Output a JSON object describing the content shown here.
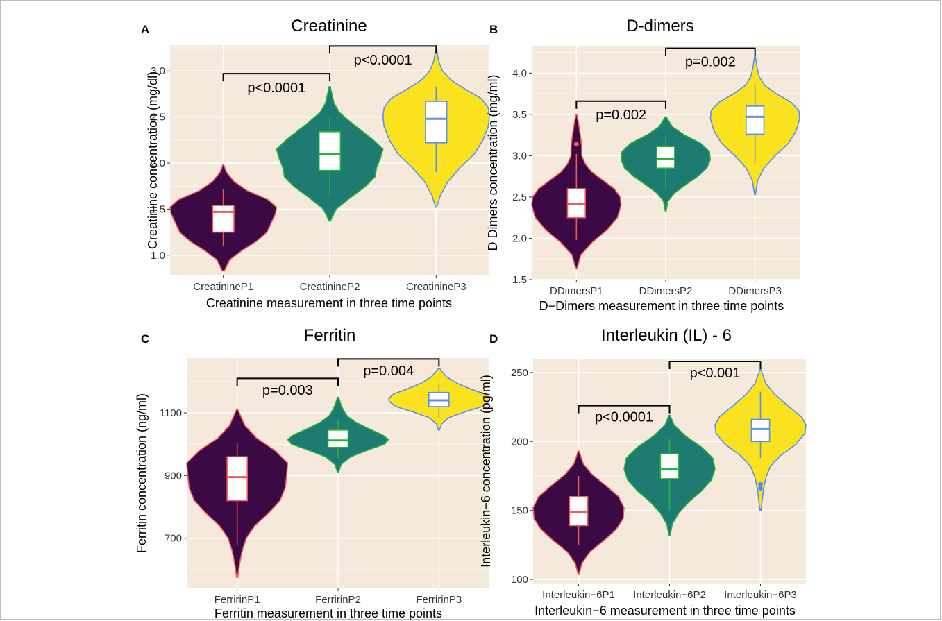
{
  "figure": {
    "colors": {
      "panel_background": "#f5e9dc",
      "gridline": "#ffffff",
      "violin_fill": [
        "#3b0a45",
        "#1e7b72",
        "#fbe21f"
      ],
      "accent": [
        "#f05a5b",
        "#2ab23a",
        "#5a8ff0"
      ],
      "bracket": "#000000"
    }
  },
  "chart_data": [
    {
      "panel": "A",
      "type": "violin",
      "title": "Creatinine",
      "xlabel": "Creatinine measurement in three time points",
      "ylabel": "Creatinine concentration (mg/dl)",
      "categories": [
        "CreatinineP1",
        "CreatinineP2",
        "CreatinineP3"
      ],
      "ylim": [
        0.78,
        3.28
      ],
      "yticks": [
        1.0,
        1.5,
        2.0,
        2.5,
        3.0
      ],
      "ytick_labels": [
        "1.0",
        "1.5",
        "2.0",
        "2.5",
        "3.0"
      ],
      "grid": true,
      "series": [
        {
          "category": "CreatinineP1",
          "min": 1.1,
          "q1": 1.25,
          "median": 1.47,
          "q3": 1.54,
          "max": 1.72,
          "violin_range": [
            0.83,
            1.98
          ],
          "outliers": [],
          "density": [
            [
              0.83,
              0.02
            ],
            [
              0.95,
              0.12
            ],
            [
              1.05,
              0.35
            ],
            [
              1.15,
              0.62
            ],
            [
              1.25,
              0.82
            ],
            [
              1.35,
              0.9
            ],
            [
              1.45,
              0.98
            ],
            [
              1.52,
              1.0
            ],
            [
              1.6,
              0.85
            ],
            [
              1.7,
              0.45
            ],
            [
              1.8,
              0.2
            ],
            [
              1.9,
              0.06
            ],
            [
              1.98,
              0.01
            ]
          ]
        },
        {
          "category": "CreatinineP2",
          "min": 1.64,
          "q1": 1.92,
          "median": 2.1,
          "q3": 2.34,
          "max": 2.5,
          "violin_range": [
            1.37,
            2.83
          ],
          "outliers": [],
          "density": [
            [
              1.37,
              0.01
            ],
            [
              1.5,
              0.12
            ],
            [
              1.62,
              0.38
            ],
            [
              1.75,
              0.68
            ],
            [
              1.85,
              0.85
            ],
            [
              1.95,
              0.88
            ],
            [
              2.05,
              0.95
            ],
            [
              2.15,
              1.0
            ],
            [
              2.25,
              0.82
            ],
            [
              2.35,
              0.6
            ],
            [
              2.45,
              0.38
            ],
            [
              2.55,
              0.18
            ],
            [
              2.65,
              0.08
            ],
            [
              2.75,
              0.04
            ],
            [
              2.83,
              0.01
            ]
          ]
        },
        {
          "category": "CreatinineP3",
          "min": 1.9,
          "q1": 2.22,
          "median": 2.48,
          "q3": 2.67,
          "max": 2.83,
          "violin_range": [
            1.52,
            3.22
          ],
          "outliers": [],
          "density": [
            [
              1.52,
              0.01
            ],
            [
              1.65,
              0.08
            ],
            [
              1.8,
              0.22
            ],
            [
              1.95,
              0.45
            ],
            [
              2.1,
              0.72
            ],
            [
              2.25,
              0.88
            ],
            [
              2.4,
              0.98
            ],
            [
              2.5,
              1.0
            ],
            [
              2.6,
              0.98
            ],
            [
              2.7,
              0.85
            ],
            [
              2.8,
              0.55
            ],
            [
              2.9,
              0.28
            ],
            [
              3.0,
              0.12
            ],
            [
              3.1,
              0.05
            ],
            [
              3.22,
              0.01
            ]
          ]
        }
      ],
      "comparisons": [
        {
          "groups": [
            0,
            1
          ],
          "label": "p<0.0001",
          "bracket_y": 2.97,
          "label_y": 2.82
        },
        {
          "groups": [
            1,
            2
          ],
          "label": "p<0.0001",
          "bracket_y": 3.27,
          "label_y": 3.12
        }
      ]
    },
    {
      "panel": "B",
      "type": "violin",
      "title": "D-dimers",
      "xlabel": "D−Dimers measurement in three time points",
      "ylabel": "D Dimers concentration (mg/ml)",
      "categories": [
        "DDimersP1",
        "DDimersP2",
        "DDimersP3"
      ],
      "ylim": [
        1.5,
        4.33
      ],
      "yticks": [
        1.5,
        2.0,
        2.5,
        3.0,
        3.5,
        4.0
      ],
      "ytick_labels": [
        "1.5",
        "2.0",
        "2.5",
        "3.0",
        "3.5",
        "4.0"
      ],
      "grid": true,
      "series": [
        {
          "category": "DDimersP1",
          "min": 1.98,
          "q1": 2.25,
          "median": 2.42,
          "q3": 2.6,
          "max": 3.02,
          "violin_range": [
            1.63,
            3.5
          ],
          "outliers": [
            3.14
          ],
          "density": [
            [
              1.63,
              0.01
            ],
            [
              1.8,
              0.1
            ],
            [
              1.95,
              0.35
            ],
            [
              2.1,
              0.68
            ],
            [
              2.25,
              0.92
            ],
            [
              2.4,
              1.0
            ],
            [
              2.5,
              0.98
            ],
            [
              2.6,
              0.85
            ],
            [
              2.7,
              0.6
            ],
            [
              2.8,
              0.35
            ],
            [
              2.9,
              0.2
            ],
            [
              3.0,
              0.12
            ],
            [
              3.1,
              0.12
            ],
            [
              3.2,
              0.1
            ],
            [
              3.35,
              0.06
            ],
            [
              3.5,
              0.01
            ]
          ]
        },
        {
          "category": "DDimersP2",
          "min": 2.6,
          "q1": 2.85,
          "median": 2.96,
          "q3": 3.11,
          "max": 3.23,
          "violin_range": [
            2.33,
            3.47
          ],
          "outliers": [],
          "density": [
            [
              2.33,
              0.01
            ],
            [
              2.45,
              0.05
            ],
            [
              2.55,
              0.2
            ],
            [
              2.65,
              0.45
            ],
            [
              2.75,
              0.72
            ],
            [
              2.85,
              0.92
            ],
            [
              2.95,
              1.0
            ],
            [
              3.05,
              0.98
            ],
            [
              3.15,
              0.78
            ],
            [
              3.25,
              0.42
            ],
            [
              3.35,
              0.15
            ],
            [
              3.47,
              0.01
            ]
          ]
        },
        {
          "category": "DDimersP3",
          "min": 2.9,
          "q1": 3.26,
          "median": 3.47,
          "q3": 3.6,
          "max": 3.86,
          "violin_range": [
            2.53,
            4.2
          ],
          "outliers": [],
          "density": [
            [
              2.53,
              0.01
            ],
            [
              2.7,
              0.06
            ],
            [
              2.85,
              0.2
            ],
            [
              3.0,
              0.45
            ],
            [
              3.15,
              0.75
            ],
            [
              3.3,
              0.92
            ],
            [
              3.45,
              1.0
            ],
            [
              3.55,
              0.98
            ],
            [
              3.65,
              0.8
            ],
            [
              3.75,
              0.48
            ],
            [
              3.85,
              0.22
            ],
            [
              3.95,
              0.1
            ],
            [
              4.05,
              0.05
            ],
            [
              4.2,
              0.01
            ]
          ]
        }
      ],
      "comparisons": [
        {
          "groups": [
            0,
            1
          ],
          "label": "p=0.002",
          "bracket_y": 3.66,
          "label_y": 3.5
        },
        {
          "groups": [
            1,
            2
          ],
          "label": "p=0.002",
          "bracket_y": 4.3,
          "label_y": 4.14
        }
      ]
    },
    {
      "panel": "C",
      "type": "violin",
      "title": "Ferritin",
      "xlabel": "Ferritin measurement in three time points",
      "ylabel": "Ferritin concentration (ng/ml)",
      "categories": [
        "FerririnP1",
        "FerririnP2",
        "FerririnP3"
      ],
      "ylim": [
        540,
        1275
      ],
      "yticks": [
        700,
        900,
        1100
      ],
      "ytick_labels": [
        "700",
        "900",
        "1100"
      ],
      "grid": true,
      "series": [
        {
          "category": "FerririnP1",
          "min": 680,
          "q1": 820,
          "median": 895,
          "q3": 960,
          "max": 1005,
          "violin_range": [
            575,
            1112
          ],
          "outliers": [],
          "density": [
            [
              575,
              0.01
            ],
            [
              620,
              0.05
            ],
            [
              660,
              0.1
            ],
            [
              700,
              0.18
            ],
            [
              740,
              0.35
            ],
            [
              780,
              0.62
            ],
            [
              820,
              0.85
            ],
            [
              860,
              0.95
            ],
            [
              900,
              0.98
            ],
            [
              940,
              1.0
            ],
            [
              980,
              0.75
            ],
            [
              1020,
              0.38
            ],
            [
              1060,
              0.15
            ],
            [
              1112,
              0.01
            ]
          ]
        },
        {
          "category": "FerririnP2",
          "min": 955,
          "q1": 990,
          "median": 1012,
          "q3": 1045,
          "max": 1075,
          "violin_range": [
            910,
            1150
          ],
          "outliers": [],
          "density": [
            [
              910,
              0.01
            ],
            [
              935,
              0.06
            ],
            [
              960,
              0.25
            ],
            [
              985,
              0.65
            ],
            [
              1000,
              0.92
            ],
            [
              1015,
              1.0
            ],
            [
              1030,
              0.88
            ],
            [
              1050,
              0.6
            ],
            [
              1070,
              0.35
            ],
            [
              1090,
              0.18
            ],
            [
              1110,
              0.1
            ],
            [
              1130,
              0.05
            ],
            [
              1150,
              0.01
            ]
          ]
        },
        {
          "category": "FerririnP3",
          "min": 1085,
          "q1": 1120,
          "median": 1140,
          "q3": 1165,
          "max": 1195,
          "violin_range": [
            1045,
            1242
          ],
          "outliers": [],
          "density": [
            [
              1045,
              0.01
            ],
            [
              1065,
              0.05
            ],
            [
              1085,
              0.2
            ],
            [
              1105,
              0.55
            ],
            [
              1120,
              0.85
            ],
            [
              1135,
              0.98
            ],
            [
              1145,
              1.0
            ],
            [
              1160,
              0.9
            ],
            [
              1175,
              0.65
            ],
            [
              1195,
              0.35
            ],
            [
              1215,
              0.15
            ],
            [
              1242,
              0.01
            ]
          ]
        }
      ],
      "comparisons": [
        {
          "groups": [
            0,
            1
          ],
          "label": "p=0.003",
          "bracket_y": 1210,
          "label_y": 1173
        },
        {
          "groups": [
            1,
            2
          ],
          "label": "p=0.004",
          "bracket_y": 1272,
          "label_y": 1235
        }
      ]
    },
    {
      "panel": "D",
      "type": "violin",
      "title": "Interleukin (IL) - 6",
      "xlabel": "Interleukin−6  measurement in three time points",
      "ylabel": "Interleukin−6 concentration (pg/ml)",
      "categories": [
        "Interleukin−6P1",
        "Interleukin−6P2",
        "Interleukin−6P3"
      ],
      "ylim": [
        97,
        260
      ],
      "yticks": [
        100,
        150,
        200,
        250
      ],
      "ytick_labels": [
        "100",
        "150",
        "200",
        "250"
      ],
      "grid": true,
      "series": [
        {
          "category": "Interleukin−6P1",
          "min": 125,
          "q1": 139,
          "median": 149,
          "q3": 160,
          "max": 175,
          "violin_range": [
            104,
            193
          ],
          "outliers": [],
          "density": [
            [
              104,
              0.01
            ],
            [
              112,
              0.08
            ],
            [
              120,
              0.25
            ],
            [
              128,
              0.55
            ],
            [
              136,
              0.82
            ],
            [
              144,
              0.98
            ],
            [
              152,
              1.0
            ],
            [
              160,
              0.88
            ],
            [
              168,
              0.6
            ],
            [
              176,
              0.3
            ],
            [
              184,
              0.1
            ],
            [
              193,
              0.01
            ]
          ]
        },
        {
          "category": "Interleukin−6P2",
          "min": 150,
          "q1": 173,
          "median": 180,
          "q3": 191,
          "max": 202,
          "violin_range": [
            132,
            219
          ],
          "outliers": [],
          "density": [
            [
              132,
              0.01
            ],
            [
              140,
              0.06
            ],
            [
              148,
              0.2
            ],
            [
              156,
              0.42
            ],
            [
              164,
              0.7
            ],
            [
              172,
              0.92
            ],
            [
              180,
              1.0
            ],
            [
              188,
              0.95
            ],
            [
              196,
              0.7
            ],
            [
              204,
              0.35
            ],
            [
              212,
              0.1
            ],
            [
              219,
              0.01
            ]
          ]
        },
        {
          "category": "Interleukin−6P3",
          "min": 188,
          "q1": 200,
          "median": 209,
          "q3": 216,
          "max": 236,
          "violin_range": [
            150,
            252
          ],
          "outliers": [
            166,
            169
          ],
          "density": [
            [
              150,
              0.01
            ],
            [
              158,
              0.04
            ],
            [
              166,
              0.07
            ],
            [
              174,
              0.12
            ],
            [
              182,
              0.22
            ],
            [
              190,
              0.45
            ],
            [
              198,
              0.78
            ],
            [
              206,
              0.98
            ],
            [
              212,
              1.0
            ],
            [
              218,
              0.9
            ],
            [
              226,
              0.6
            ],
            [
              234,
              0.32
            ],
            [
              242,
              0.12
            ],
            [
              252,
              0.01
            ]
          ]
        }
      ],
      "comparisons": [
        {
          "groups": [
            0,
            1
          ],
          "label": "p<0.0001",
          "bracket_y": 226,
          "label_y": 218
        },
        {
          "groups": [
            1,
            2
          ],
          "label": "p<0.001",
          "bracket_y": 258,
          "label_y": 250
        }
      ]
    }
  ]
}
